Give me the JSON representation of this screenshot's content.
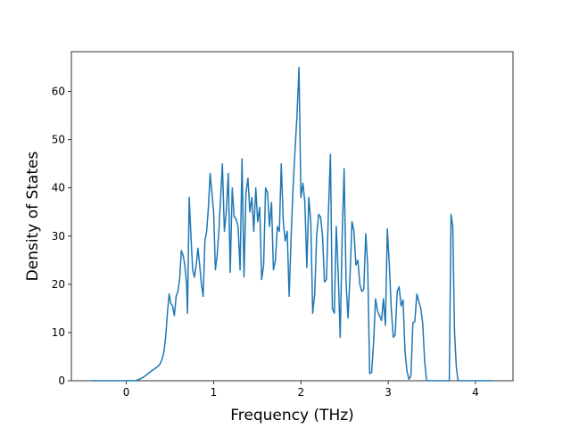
{
  "chart_data": {
    "type": "line",
    "xlabel": "Frequency (THz)",
    "ylabel": "Density of States",
    "xlim": [
      -0.63,
      4.43
    ],
    "ylim": [
      0,
      68.25
    ],
    "xticks": [
      0,
      1,
      2,
      3,
      4
    ],
    "yticks": [
      0,
      10,
      20,
      30,
      40,
      50,
      60
    ],
    "series": [
      {
        "color": "#1f77b4",
        "x": [
          -0.4,
          0.1,
          0.15,
          0.2,
          0.25,
          0.3,
          0.35,
          0.38,
          0.41,
          0.43,
          0.45,
          0.47,
          0.49,
          0.51,
          0.53,
          0.55,
          0.57,
          0.59,
          0.61,
          0.63,
          0.65,
          0.67,
          0.69,
          0.7,
          0.72,
          0.74,
          0.76,
          0.78,
          0.8,
          0.82,
          0.84,
          0.86,
          0.88,
          0.9,
          0.92,
          0.94,
          0.96,
          0.98,
          1.0,
          1.02,
          1.04,
          1.06,
          1.1,
          1.123,
          1.145,
          1.168,
          1.19,
          1.213,
          1.235,
          1.258,
          1.28,
          1.303,
          1.325,
          1.348,
          1.37,
          1.393,
          1.415,
          1.438,
          1.46,
          1.483,
          1.505,
          1.528,
          1.55,
          1.573,
          1.595,
          1.618,
          1.64,
          1.663,
          1.685,
          1.708,
          1.73,
          1.753,
          1.775,
          1.798,
          1.82,
          1.843,
          1.865,
          1.888,
          1.91,
          1.933,
          1.955,
          1.978,
          2.0,
          2.023,
          2.045,
          2.068,
          2.09,
          2.113,
          2.135,
          2.158,
          2.18,
          2.203,
          2.225,
          2.248,
          2.27,
          2.293,
          2.315,
          2.338,
          2.36,
          2.383,
          2.405,
          2.428,
          2.45,
          2.473,
          2.495,
          2.518,
          2.54,
          2.563,
          2.585,
          2.608,
          2.63,
          2.653,
          2.675,
          2.698,
          2.72,
          2.743,
          2.765,
          2.788,
          2.81,
          2.833,
          2.855,
          2.878,
          2.9,
          2.923,
          2.945,
          2.968,
          2.99,
          3.013,
          3.035,
          3.058,
          3.08,
          3.103,
          3.125,
          3.148,
          3.17,
          3.193,
          3.215,
          3.238,
          3.26,
          3.283,
          3.305,
          3.328,
          3.35,
          3.373,
          3.395,
          3.418,
          3.44,
          3.7,
          3.72,
          3.74,
          3.76,
          3.78,
          3.8,
          4.2
        ],
        "values": [
          0,
          0,
          0.3,
          0.8,
          1.5,
          2.2,
          2.8,
          3.3,
          4.5,
          6,
          9,
          14,
          18,
          16,
          15.5,
          13.5,
          17.5,
          18.5,
          21,
          27,
          26,
          24,
          20,
          14,
          38,
          30,
          23,
          21.5,
          24,
          27.5,
          24,
          20,
          17.5,
          29,
          31,
          36,
          43,
          39,
          35,
          23,
          26,
          31,
          45,
          31,
          35,
          43,
          22.5,
          40,
          34,
          33.5,
          32,
          23,
          46,
          21.5,
          39,
          42,
          35,
          38,
          31,
          40,
          33,
          36,
          21,
          24,
          40,
          39,
          32,
          37,
          23,
          25,
          32,
          31,
          45,
          33,
          29,
          31,
          17.5,
          30,
          40,
          48,
          55,
          65,
          38,
          41,
          37,
          23.5,
          38,
          33,
          14,
          18,
          30,
          34.5,
          34,
          30,
          20.5,
          21,
          35,
          47,
          15,
          14,
          32,
          22,
          9,
          30,
          44,
          20,
          13,
          22,
          33,
          31,
          24,
          25,
          20,
          18.5,
          19,
          30.5,
          24,
          1.5,
          1.7,
          8,
          17,
          14.5,
          13.5,
          12.5,
          17,
          11.5,
          31.5,
          24,
          15,
          9,
          9.5,
          18.5,
          19.5,
          15.5,
          16.8,
          6,
          2,
          0.3,
          1,
          12,
          12.3,
          18,
          16.5,
          15,
          12,
          4,
          0,
          0,
          34.5,
          32,
          10,
          3,
          0,
          0
        ]
      }
    ]
  }
}
